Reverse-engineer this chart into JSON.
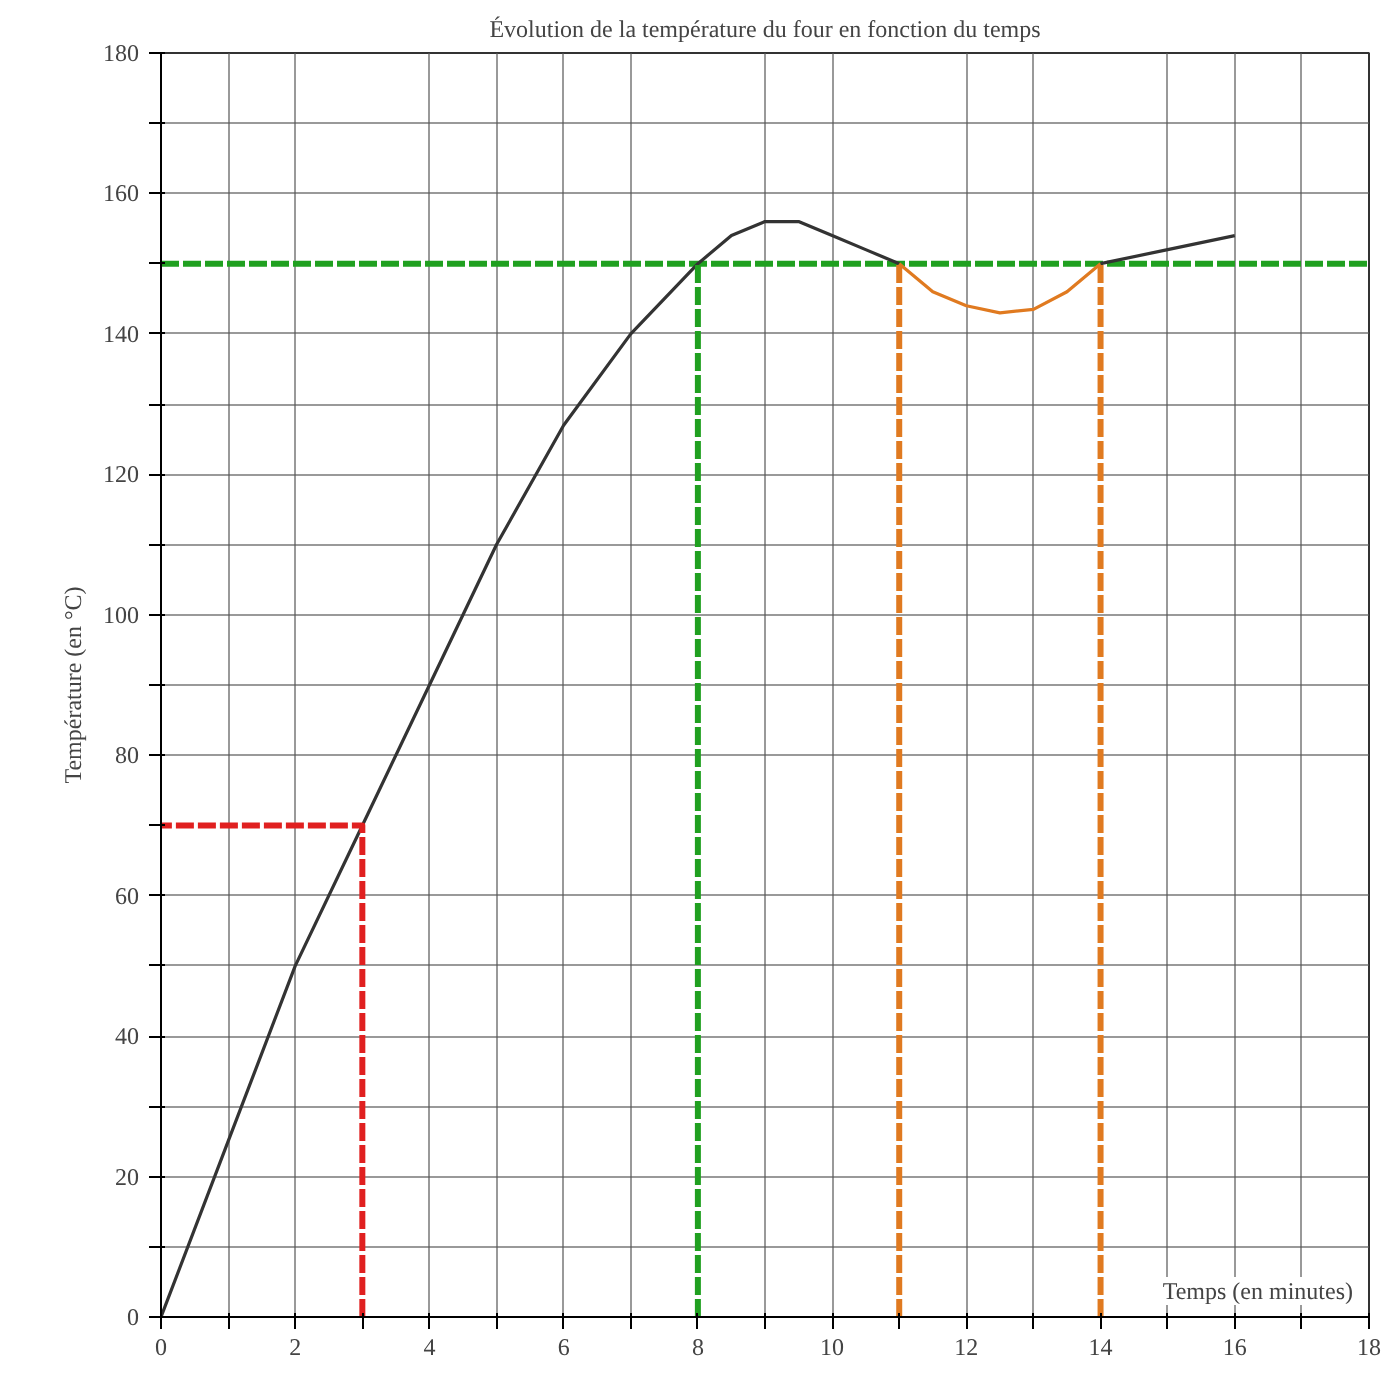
{
  "chart_data": {
    "type": "line",
    "title": "Évolution de la température du four en fonction du temps",
    "xlabel": "Temps (en minutes)",
    "ylabel": "Température (en °C)",
    "xlim": [
      0,
      18
    ],
    "ylim": [
      0,
      180
    ],
    "xticks": [
      0,
      {
        "value": 1,
        "label": null
      },
      2,
      {
        "value": 3,
        "label": null
      },
      4,
      {
        "value": 5,
        "label": null
      },
      6,
      {
        "value": 7,
        "label": null
      },
      8,
      {
        "value": 9,
        "label": null
      },
      10,
      {
        "value": 11,
        "label": null
      },
      12,
      {
        "value": 13,
        "label": null
      },
      14,
      {
        "value": 15,
        "label": null
      },
      16,
      {
        "value": 17,
        "label": null
      },
      18
    ],
    "yticks": [
      0,
      {
        "value": 10,
        "label": null
      },
      20,
      {
        "value": 30,
        "label": null
      },
      40,
      {
        "value": 50,
        "label": null
      },
      60,
      {
        "value": 70,
        "label": null
      },
      80,
      {
        "value": 90,
        "label": null
      },
      100,
      {
        "value": 110,
        "label": null
      },
      120,
      {
        "value": 130,
        "label": null
      },
      140,
      {
        "value": 150,
        "label": null
      },
      160,
      {
        "value": 170,
        "label": null
      },
      180
    ],
    "grid": true,
    "marker": "none",
    "series": [
      {
        "color": "#333333",
        "line_style": "solid",
        "x": [
          0,
          1,
          2,
          3,
          4,
          5,
          6,
          7,
          8,
          8.5,
          9,
          9.5,
          10,
          10.5,
          11
        ],
        "values": [
          0,
          25,
          50,
          70,
          90,
          110,
          127,
          140,
          150,
          154,
          156,
          156,
          154,
          152,
          150
        ]
      },
      {
        "color": "#e07a20",
        "line_style": "solid",
        "x": [
          11,
          11.5,
          12,
          12.5,
          13,
          13.5,
          14
        ],
        "values": [
          150,
          146,
          144,
          143,
          143.5,
          146,
          150
        ]
      },
      {
        "color": "#333333",
        "line_style": "solid",
        "x": [
          14,
          15,
          16
        ],
        "values": [
          150,
          152,
          154
        ]
      },
      {
        "color": "#e02020",
        "line_style": "dashed",
        "x": [
          3,
          3,
          0
        ],
        "values": [
          0,
          70,
          70
        ]
      },
      {
        "color": "#20a020",
        "line_style": "dashed",
        "x": [
          8,
          8,
          8
        ],
        "values": [
          0,
          75,
          150
        ]
      },
      {
        "color": "#e07a20",
        "line_style": "dashed",
        "x": [
          11,
          11,
          11
        ],
        "values": [
          0,
          75,
          150
        ]
      },
      {
        "color": "#e07a20",
        "line_style": "dashed",
        "x": [
          14,
          14,
          14
        ],
        "values": [
          0,
          75,
          150
        ]
      }
    ],
    "ref_lines": [
      {
        "axis": "y",
        "value": 150,
        "color": "#20a020",
        "line_style": "dashed"
      }
    ]
  }
}
